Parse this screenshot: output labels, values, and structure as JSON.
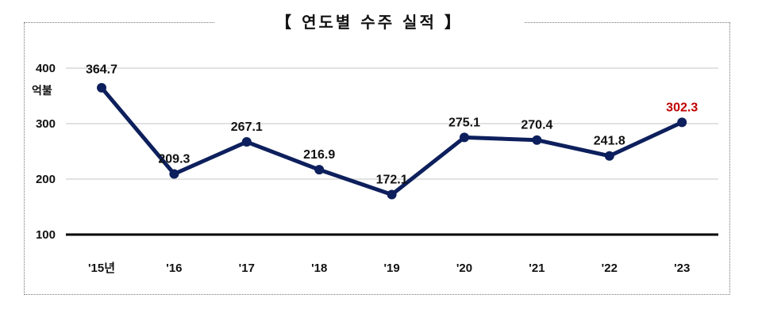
{
  "chart_data": {
    "type": "line",
    "title": "【 연도별 수주 실적 】",
    "ylabel": "억불",
    "categories": [
      "'15년",
      "'16",
      "'17",
      "'18",
      "'19",
      "'20",
      "'21",
      "'22",
      "'23"
    ],
    "values": [
      364.7,
      209.3,
      267.1,
      216.9,
      172.1,
      275.1,
      270.4,
      241.8,
      302.3
    ],
    "data_labels": [
      "364.7",
      "209.3",
      "267.1",
      "216.9",
      "172.1",
      "275.1",
      "270.4",
      "241.8",
      "302.3"
    ],
    "yticks": [
      100,
      200,
      300,
      400
    ],
    "ylim": [
      100,
      400
    ],
    "grid": true,
    "line_color": "#0d1f5c",
    "highlight_color": "#c00000",
    "highlight_index": 8
  }
}
